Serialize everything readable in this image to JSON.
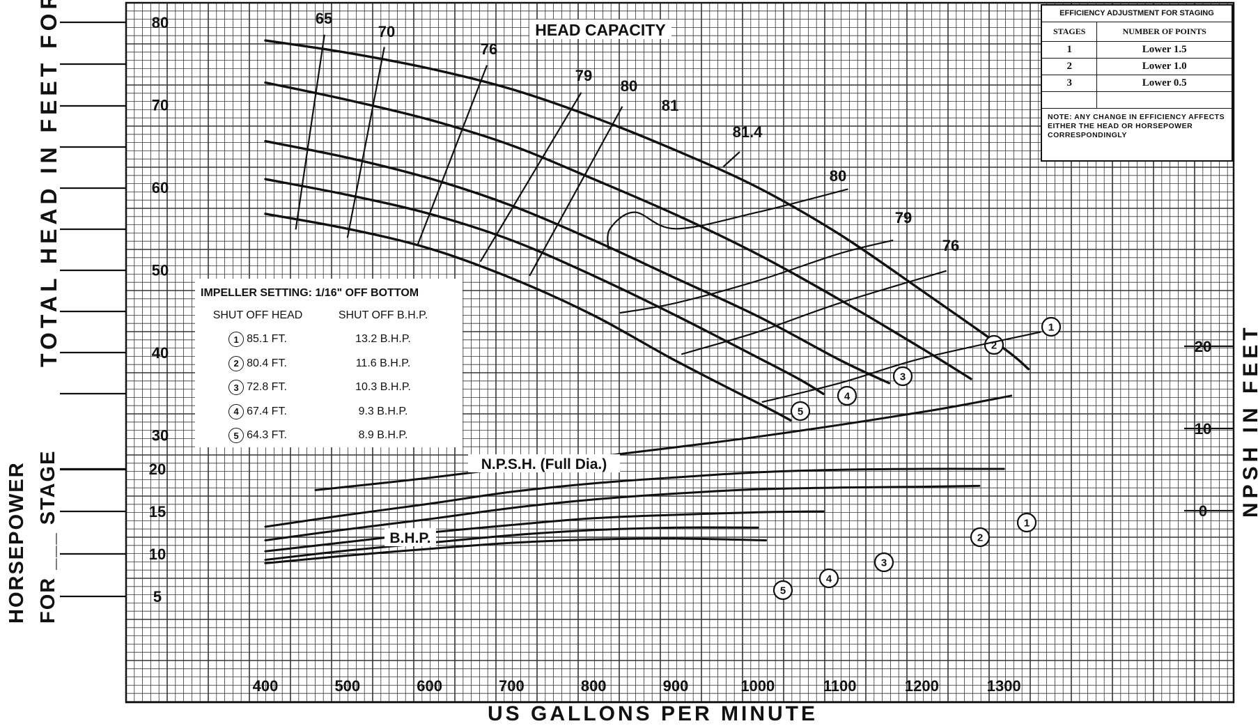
{
  "chart_data": {
    "type": "line",
    "x_axis": {
      "label": "US GALLONS PER MINUTE",
      "range": [
        400,
        1300
      ],
      "tick_labels": [
        "400",
        "500",
        "600",
        "700",
        "800",
        "900",
        "1000",
        "1100",
        "1200",
        "1300"
      ],
      "ticks": [
        400,
        500,
        600,
        700,
        800,
        900,
        1000,
        1100,
        1200,
        1300
      ]
    },
    "head_axis": {
      "label": "TOTAL HEAD IN FEET FOR ___ STAGE",
      "ticks": [
        30,
        40,
        50,
        60,
        70,
        80
      ],
      "tick_labels": [
        "30",
        "40",
        "50",
        "60",
        "70",
        "80"
      ]
    },
    "bhp_axis": {
      "label_line1": "HORSEPOWER",
      "label_line2": "FOR ___ STAGE",
      "ticks": [
        5,
        10,
        15,
        20
      ],
      "tick_labels": [
        "5",
        "10",
        "15",
        "20"
      ]
    },
    "npsh_axis": {
      "label": "NPSH IN FEET",
      "ticks": [
        0,
        10,
        20
      ],
      "tick_labels": [
        "0",
        "10",
        "20"
      ]
    },
    "grid": true,
    "head_capacity_title": "HEAD CAPACITY",
    "npsh_title": "N.P.S.H. (Full Dia.)",
    "bhp_title": "B.H.P.",
    "head_series": [
      {
        "name": "1",
        "x": [
          400,
          500,
          600,
          700,
          800,
          900,
          1000,
          1100,
          1200,
          1300,
          1330
        ],
        "y": [
          77.8,
          76.3,
          74.4,
          71.9,
          68.5,
          64.5,
          60.0,
          54.3,
          47.5,
          40.5,
          38.0
        ]
      },
      {
        "name": "2",
        "x": [
          400,
          500,
          600,
          700,
          800,
          900,
          1000,
          1100,
          1200,
          1260
        ],
        "y": [
          72.7,
          70.6,
          68.2,
          65.1,
          61.0,
          56.7,
          51.9,
          46.4,
          40.5,
          36.8
        ]
      },
      {
        "name": "3",
        "x": [
          400,
          500,
          600,
          700,
          800,
          900,
          1000,
          1100,
          1160
        ],
        "y": [
          65.6,
          63.6,
          61.1,
          57.8,
          53.6,
          49.0,
          44.4,
          39.1,
          36.3
        ]
      },
      {
        "name": "4",
        "x": [
          400,
          500,
          600,
          700,
          800,
          900,
          1000,
          1050,
          1080
        ],
        "y": [
          61.0,
          59.1,
          56.8,
          53.6,
          49.3,
          44.5,
          39.4,
          36.8,
          35.0
        ]
      },
      {
        "name": "5",
        "x": [
          400,
          500,
          600,
          700,
          800,
          900,
          1000,
          1040
        ],
        "y": [
          56.8,
          55.0,
          52.6,
          49.0,
          44.5,
          39.0,
          33.9,
          31.8
        ]
      }
    ],
    "efficiency_curves": [
      {
        "label": "65",
        "x": [
          437,
          472
        ],
        "y": [
          54.9,
          78.5
        ]
      },
      {
        "label": "70",
        "x": [
          500,
          545
        ],
        "y": [
          53.9,
          77.0
        ]
      },
      {
        "label": "76",
        "x": [
          585,
          670
        ],
        "y": [
          52.9,
          74.8
        ]
      },
      {
        "label": "79",
        "x": [
          662,
          785
        ],
        "y": [
          51.0,
          71.5
        ]
      },
      {
        "label": "80",
        "x": [
          722,
          835
        ],
        "y": [
          49.3,
          69.8
        ]
      },
      {
        "label": "81",
        "x": [
          818,
          820,
          850,
          900,
          1000,
          1110
        ],
        "y": [
          52.5,
          55.0,
          57.0,
          55.0,
          57.0,
          59.8
        ]
      },
      {
        "label": "81.4",
        "x": [
          958,
          978
        ],
        "y": [
          62.5,
          64.3
        ]
      },
      {
        "label": "80",
        "x": [
          832,
          900,
          1000,
          1100,
          1165
        ],
        "y": [
          44.8,
          46.0,
          48.7,
          52.0,
          53.6
        ]
      },
      {
        "label": "79",
        "x": [
          907,
          1000,
          1100,
          1230
        ],
        "y": [
          39.8,
          42.5,
          46.0,
          49.9
        ]
      },
      {
        "label": "76",
        "x": [
          1005,
          1100,
          1200,
          1345
        ],
        "y": [
          34.0,
          36.3,
          39.3,
          42.5
        ]
      }
    ],
    "npsh_series": {
      "x": [
        460,
        600,
        800,
        1000,
        1200,
        1310
      ],
      "y": [
        2.5,
        4.0,
        6.5,
        9.0,
        12.0,
        14.0
      ]
    },
    "bhp_series": [
      {
        "name": "1",
        "x": [
          400,
          500,
          600,
          700,
          800,
          900,
          1000,
          1100,
          1200,
          1300
        ],
        "y": [
          13.2,
          14.6,
          15.9,
          17.3,
          18.3,
          19.0,
          19.6,
          19.9,
          20.0,
          20.0
        ]
      },
      {
        "name": "2",
        "x": [
          400,
          500,
          600,
          700,
          800,
          900,
          1000,
          1100,
          1200,
          1270
        ],
        "y": [
          11.6,
          12.9,
          14.1,
          15.4,
          16.4,
          17.1,
          17.6,
          17.8,
          17.9,
          18.0
        ]
      },
      {
        "name": "3",
        "x": [
          400,
          500,
          600,
          700,
          800,
          900,
          1000,
          1080
        ],
        "y": [
          10.3,
          11.4,
          12.5,
          13.4,
          14.2,
          14.6,
          14.9,
          15.0
        ]
      },
      {
        "name": "4",
        "x": [
          400,
          500,
          600,
          700,
          800,
          900,
          1000
        ],
        "y": [
          9.3,
          10.4,
          11.3,
          12.2,
          12.8,
          13.1,
          13.1
        ]
      },
      {
        "name": "5",
        "x": [
          400,
          500,
          600,
          700,
          800,
          900,
          1010
        ],
        "y": [
          8.9,
          9.8,
          10.6,
          11.3,
          11.7,
          11.8,
          11.6
        ]
      }
    ]
  },
  "impeller_table": {
    "title": "IMPELLER SETTING:  1/16\" OFF BOTTOM",
    "col1_header": "SHUT OFF HEAD",
    "col2_header": "SHUT OFF B.H.P.",
    "rows": [
      {
        "n": "1",
        "head": "85.1 FT.",
        "bhp": "13.2 B.H.P."
      },
      {
        "n": "2",
        "head": "80.4 FT.",
        "bhp": "11.6 B.H.P."
      },
      {
        "n": "3",
        "head": "72.8 FT.",
        "bhp": "10.3 B.H.P."
      },
      {
        "n": "4",
        "head": "67.4 FT.",
        "bhp": "9.3 B.H.P."
      },
      {
        "n": "5",
        "head": "64.3 FT.",
        "bhp": "8.9 B.H.P."
      }
    ]
  },
  "efficiency_table": {
    "title": "EFFICIENCY ADJUSTMENT FOR STAGING",
    "col1_header": "STAGES",
    "col2_header": "NUMBER OF POINTS",
    "rows": [
      {
        "stages": "1",
        "points": "Lower 1.5"
      },
      {
        "stages": "2",
        "points": "Lower 1.0"
      },
      {
        "stages": "3",
        "points": "Lower 0.5"
      }
    ],
    "note": "NOTE:   ANY CHANGE IN EFFICIENCY AFFECTS EITHER THE HEAD OR HORSEPOWER CORRESPONDINGLY"
  },
  "colors": {
    "ink": "#111111",
    "grid": "#333333",
    "paper": "#ffffff"
  }
}
